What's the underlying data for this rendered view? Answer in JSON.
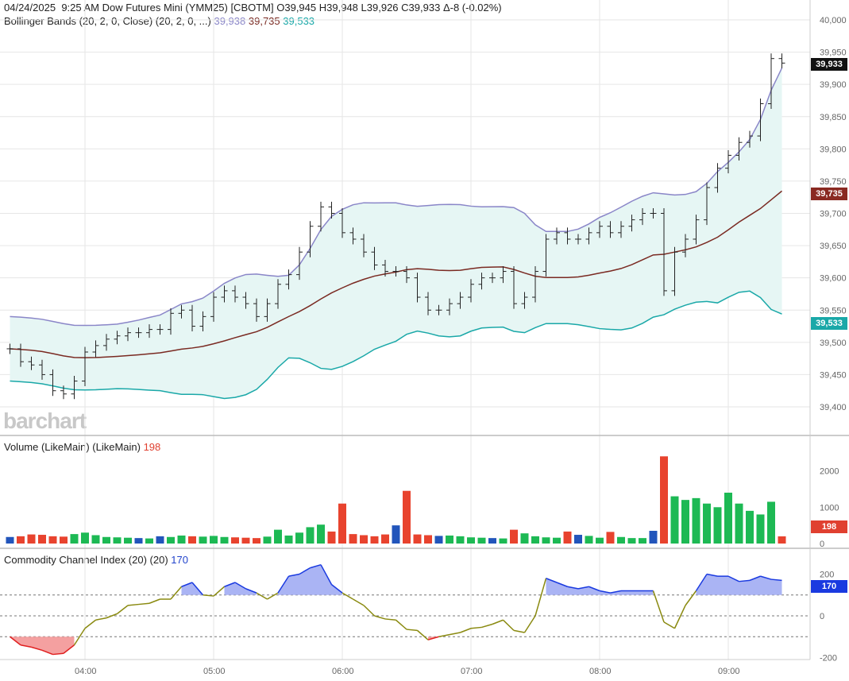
{
  "header": {
    "date": "04/24/2025",
    "time": "9:25 AM",
    "symbol": "Dow Futures Mini (YMM25) [CBOTM]",
    "open": "O39,945",
    "high": "H39,948",
    "low": "L39,926",
    "close": "C39,933",
    "change": "Δ-8 (-0.02%)"
  },
  "bollinger": {
    "label": "Bollinger Bands (20, 2, 0, Close)  (20, 2, 0, ...)",
    "upper": "39,938",
    "middle": "39,735",
    "lower": "39,533",
    "colors": {
      "upper": "#8a86c8",
      "middle": "#7a2a22",
      "lower": "#1aa8a8"
    }
  },
  "volume": {
    "label": "Volume (LikeMain)  (LikeMain)",
    "value": "198"
  },
  "cci": {
    "label": "Commodity Channel Index (20)  (20)",
    "value": "170"
  },
  "logo": "barchart",
  "price_tags": {
    "last": "39,933",
    "middle": "39,735",
    "lower": "39,533"
  },
  "chart_data": {
    "type": "ohlc",
    "x_start": "03:25",
    "interval_minutes": 5,
    "x_ticks": [
      "04:00",
      "05:00",
      "06:00",
      "07:00",
      "08:00",
      "09:00"
    ],
    "price_axis": {
      "ylim": [
        39400,
        40000
      ],
      "ticks": [
        "40,000",
        "39,950",
        "39,900",
        "39,850",
        "39,800",
        "39,750",
        "39,700",
        "39,650",
        "39,600",
        "39,550",
        "39,500",
        "39,450",
        "39,400"
      ]
    },
    "close": [
      39490,
      39470,
      39465,
      39450,
      39425,
      39420,
      39440,
      39485,
      39495,
      39505,
      39510,
      39515,
      39515,
      39520,
      39520,
      39545,
      39550,
      39525,
      39540,
      39570,
      39580,
      39570,
      39560,
      39540,
      39560,
      39590,
      39605,
      39640,
      39680,
      39710,
      39700,
      39670,
      39660,
      39640,
      39620,
      39610,
      39610,
      39600,
      39570,
      39550,
      39550,
      39560,
      39570,
      39590,
      39600,
      39600,
      39610,
      39560,
      39570,
      39610,
      39660,
      39670,
      39660,
      39660,
      39670,
      39680,
      39670,
      39680,
      39690,
      39700,
      39700,
      39580,
      39640,
      39660,
      39690,
      39740,
      39770,
      39790,
      39810,
      39820,
      39870,
      39940,
      39933
    ],
    "volume": [
      180,
      200,
      250,
      240,
      200,
      190,
      260,
      300,
      230,
      180,
      170,
      160,
      150,
      140,
      200,
      180,
      220,
      200,
      190,
      210,
      180,
      170,
      160,
      150,
      190,
      380,
      220,
      300,
      450,
      520,
      330,
      1100,
      260,
      230,
      200,
      250,
      500,
      1450,
      250,
      230,
      210,
      220,
      200,
      170,
      160,
      150,
      140,
      380,
      280,
      200,
      170,
      160,
      330,
      240,
      210,
      160,
      320,
      180,
      150,
      150,
      350,
      2400,
      1300,
      1200,
      1250,
      1100,
      1000,
      1400,
      1100,
      900,
      800,
      1150,
      198
    ],
    "volume_axis": {
      "ylim": [
        0,
        2800
      ],
      "ticks": [
        "2000",
        "1000",
        "0"
      ]
    },
    "cci": [
      -100,
      -140,
      -150,
      -165,
      -185,
      -180,
      -140,
      -60,
      -20,
      -10,
      10,
      50,
      55,
      60,
      80,
      80,
      140,
      160,
      100,
      95,
      140,
      160,
      130,
      110,
      80,
      110,
      190,
      200,
      230,
      245,
      150,
      110,
      80,
      50,
      0,
      -15,
      -20,
      -65,
      -70,
      -115,
      -100,
      -90,
      -80,
      -60,
      -55,
      -40,
      -20,
      -70,
      -80,
      0,
      180,
      160,
      140,
      130,
      140,
      120,
      110,
      120,
      120,
      120,
      120,
      -30,
      -60,
      50,
      120,
      200,
      190,
      190,
      165,
      170,
      190,
      175,
      170
    ],
    "cci_axis": {
      "ylim": [
        -250,
        280
      ],
      "ticks": [
        "200",
        "0",
        "-200"
      ],
      "levels": [
        100,
        0,
        -100
      ]
    }
  }
}
